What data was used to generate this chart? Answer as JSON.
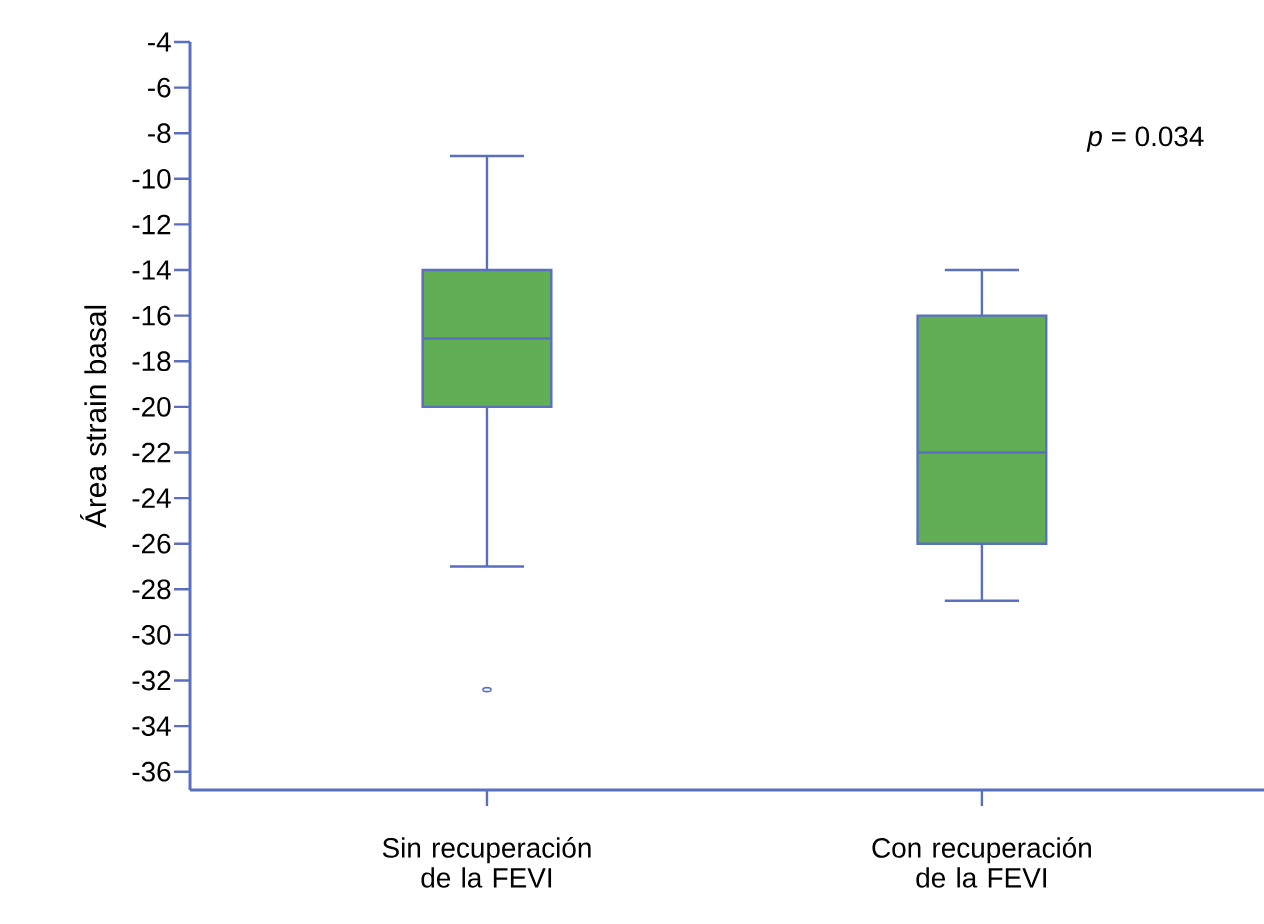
{
  "chart_data": {
    "type": "box",
    "ylabel": "Área strain basal",
    "categories": [
      "Sin recuperación de la FEVI",
      "Con recuperación de la FEVI"
    ],
    "boxes": [
      {
        "low": -27,
        "q1": -20,
        "median": -17,
        "q3": -14,
        "high": -9,
        "outliers": [
          -32.4
        ]
      },
      {
        "low": -28.5,
        "q1": -26,
        "median": -22,
        "q3": -16,
        "high": -14
      }
    ],
    "color": "#62ae55",
    "ylim": [
      -36.8,
      -4
    ],
    "yticks": [
      -4,
      -6,
      -8,
      -10,
      -12,
      -14,
      -16,
      -18,
      -20,
      -22,
      -24,
      -26,
      -28,
      -30,
      -32,
      -34,
      -36
    ],
    "annotations": [
      "*p* = 0.034"
    ]
  }
}
